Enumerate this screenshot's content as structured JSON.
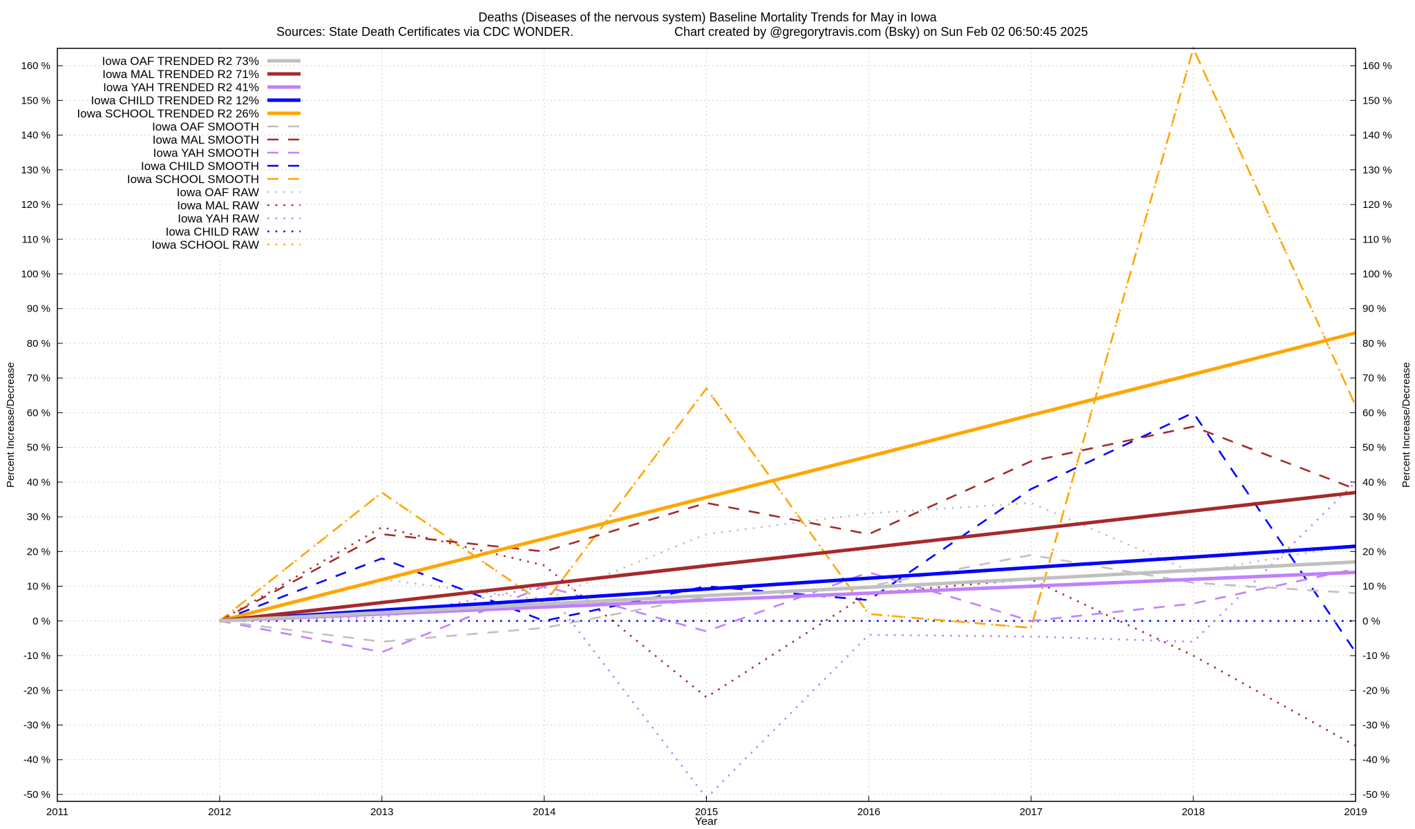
{
  "chart_data": {
    "type": "line",
    "title": "Deaths (Diseases of the nervous system)  Baseline Mortality Trends for May in Iowa",
    "subtitle_left": "Sources: State Death Certificates via CDC WONDER.",
    "subtitle_right": "Chart created by @gregorytravis.com (Bsky) on Sun Feb 02 06:50:45 2025",
    "xlabel": "Year",
    "ylabel": "Percent Increase/Decrease",
    "ylabel_right": "Percent Increase/Decrease",
    "xlim": [
      2011,
      2019
    ],
    "ylim": [
      -52,
      165
    ],
    "xticks": [
      "2011",
      "2012",
      "2013",
      "2014",
      "2015",
      "2016",
      "2017",
      "2018",
      "2019"
    ],
    "yticks": [
      -50,
      -40,
      -30,
      -20,
      -10,
      0,
      10,
      20,
      30,
      40,
      50,
      60,
      70,
      80,
      90,
      100,
      110,
      120,
      130,
      140,
      150,
      160
    ],
    "ytick_suffix": " %",
    "grid": true,
    "legend_placement": "top-left",
    "x": [
      2012,
      2013,
      2014,
      2015,
      2016,
      2017,
      2018,
      2019
    ],
    "series": [
      {
        "name": "Iowa OAF TRENDED R2  73%",
        "color": "#c0c0c0",
        "style": "trend",
        "values": [
          0,
          2.4,
          4.9,
          7.3,
          9.7,
          12.1,
          14.6,
          17
        ]
      },
      {
        "name": "Iowa MAL TRENDED R2  71%",
        "color": "#a52a2a",
        "style": "trend",
        "values": [
          0,
          5.3,
          10.6,
          15.9,
          21.1,
          26.4,
          31.7,
          37
        ]
      },
      {
        "name": "Iowa YAH TRENDED R2  41%",
        "color": "#c080ff",
        "style": "trend",
        "values": [
          0,
          2,
          4,
          6,
          8,
          10,
          12,
          14
        ]
      },
      {
        "name": "Iowa CHILD TRENDED R2  12%",
        "color": "#0000ff",
        "style": "trend",
        "values": [
          0,
          3.1,
          6.1,
          9.2,
          12.3,
          15.4,
          18.4,
          21.5
        ]
      },
      {
        "name": "Iowa SCHOOL TRENDED R2  26%",
        "color": "#ffa500",
        "style": "trend",
        "values": [
          0,
          11.9,
          23.7,
          35.6,
          47.4,
          59.3,
          71.1,
          83
        ]
      },
      {
        "name": "Iowa OAF SMOOTH",
        "color": "#c0c0c0",
        "style": "smooth",
        "values": [
          0,
          -6,
          -2,
          7,
          10,
          19,
          11,
          8
        ]
      },
      {
        "name": "Iowa MAL SMOOTH",
        "color": "#a52a2a",
        "style": "smooth",
        "values": [
          0,
          25,
          20,
          34,
          25,
          46,
          56,
          38
        ]
      },
      {
        "name": "Iowa YAH SMOOTH",
        "color": "#c080ff",
        "style": "smooth",
        "values": [
          0,
          -9,
          10,
          -3,
          14,
          0,
          5,
          15
        ]
      },
      {
        "name": "Iowa CHILD SMOOTH",
        "color": "#0000ff",
        "style": "smooth",
        "values": [
          0,
          18,
          0,
          10,
          6,
          38,
          60,
          -9
        ]
      },
      {
        "name": "Iowa SCHOOL SMOOTH",
        "color": "#ffa500",
        "style": "smooth",
        "values": [
          0,
          37,
          5,
          67,
          2,
          -2,
          165,
          62
        ]
      },
      {
        "name": "Iowa OAF RAW",
        "color": "#c0c0c0",
        "style": "raw",
        "values": [
          0,
          12,
          6,
          25,
          31,
          34,
          14,
          22
        ]
      },
      {
        "name": "Iowa MAL RAW",
        "color": "#a52a2a",
        "style": "raw",
        "values": [
          0,
          27,
          16,
          -22,
          8,
          12,
          -10,
          -36
        ]
      },
      {
        "name": "Iowa YAH RAW",
        "color": "#c080ff",
        "style": "raw",
        "values": [
          0,
          1,
          10,
          -51,
          -4,
          -4.5,
          -6,
          40
        ]
      },
      {
        "name": "Iowa CHILD RAW",
        "color": "#0000ff",
        "style": "raw",
        "values": [
          0,
          0,
          0,
          0,
          0,
          0,
          0,
          0
        ]
      },
      {
        "name": "Iowa SCHOOL RAW",
        "color": "#ffa500",
        "style": "raw",
        "values": [
          0,
          37,
          5,
          67,
          2,
          -2,
          165,
          62
        ]
      }
    ]
  }
}
